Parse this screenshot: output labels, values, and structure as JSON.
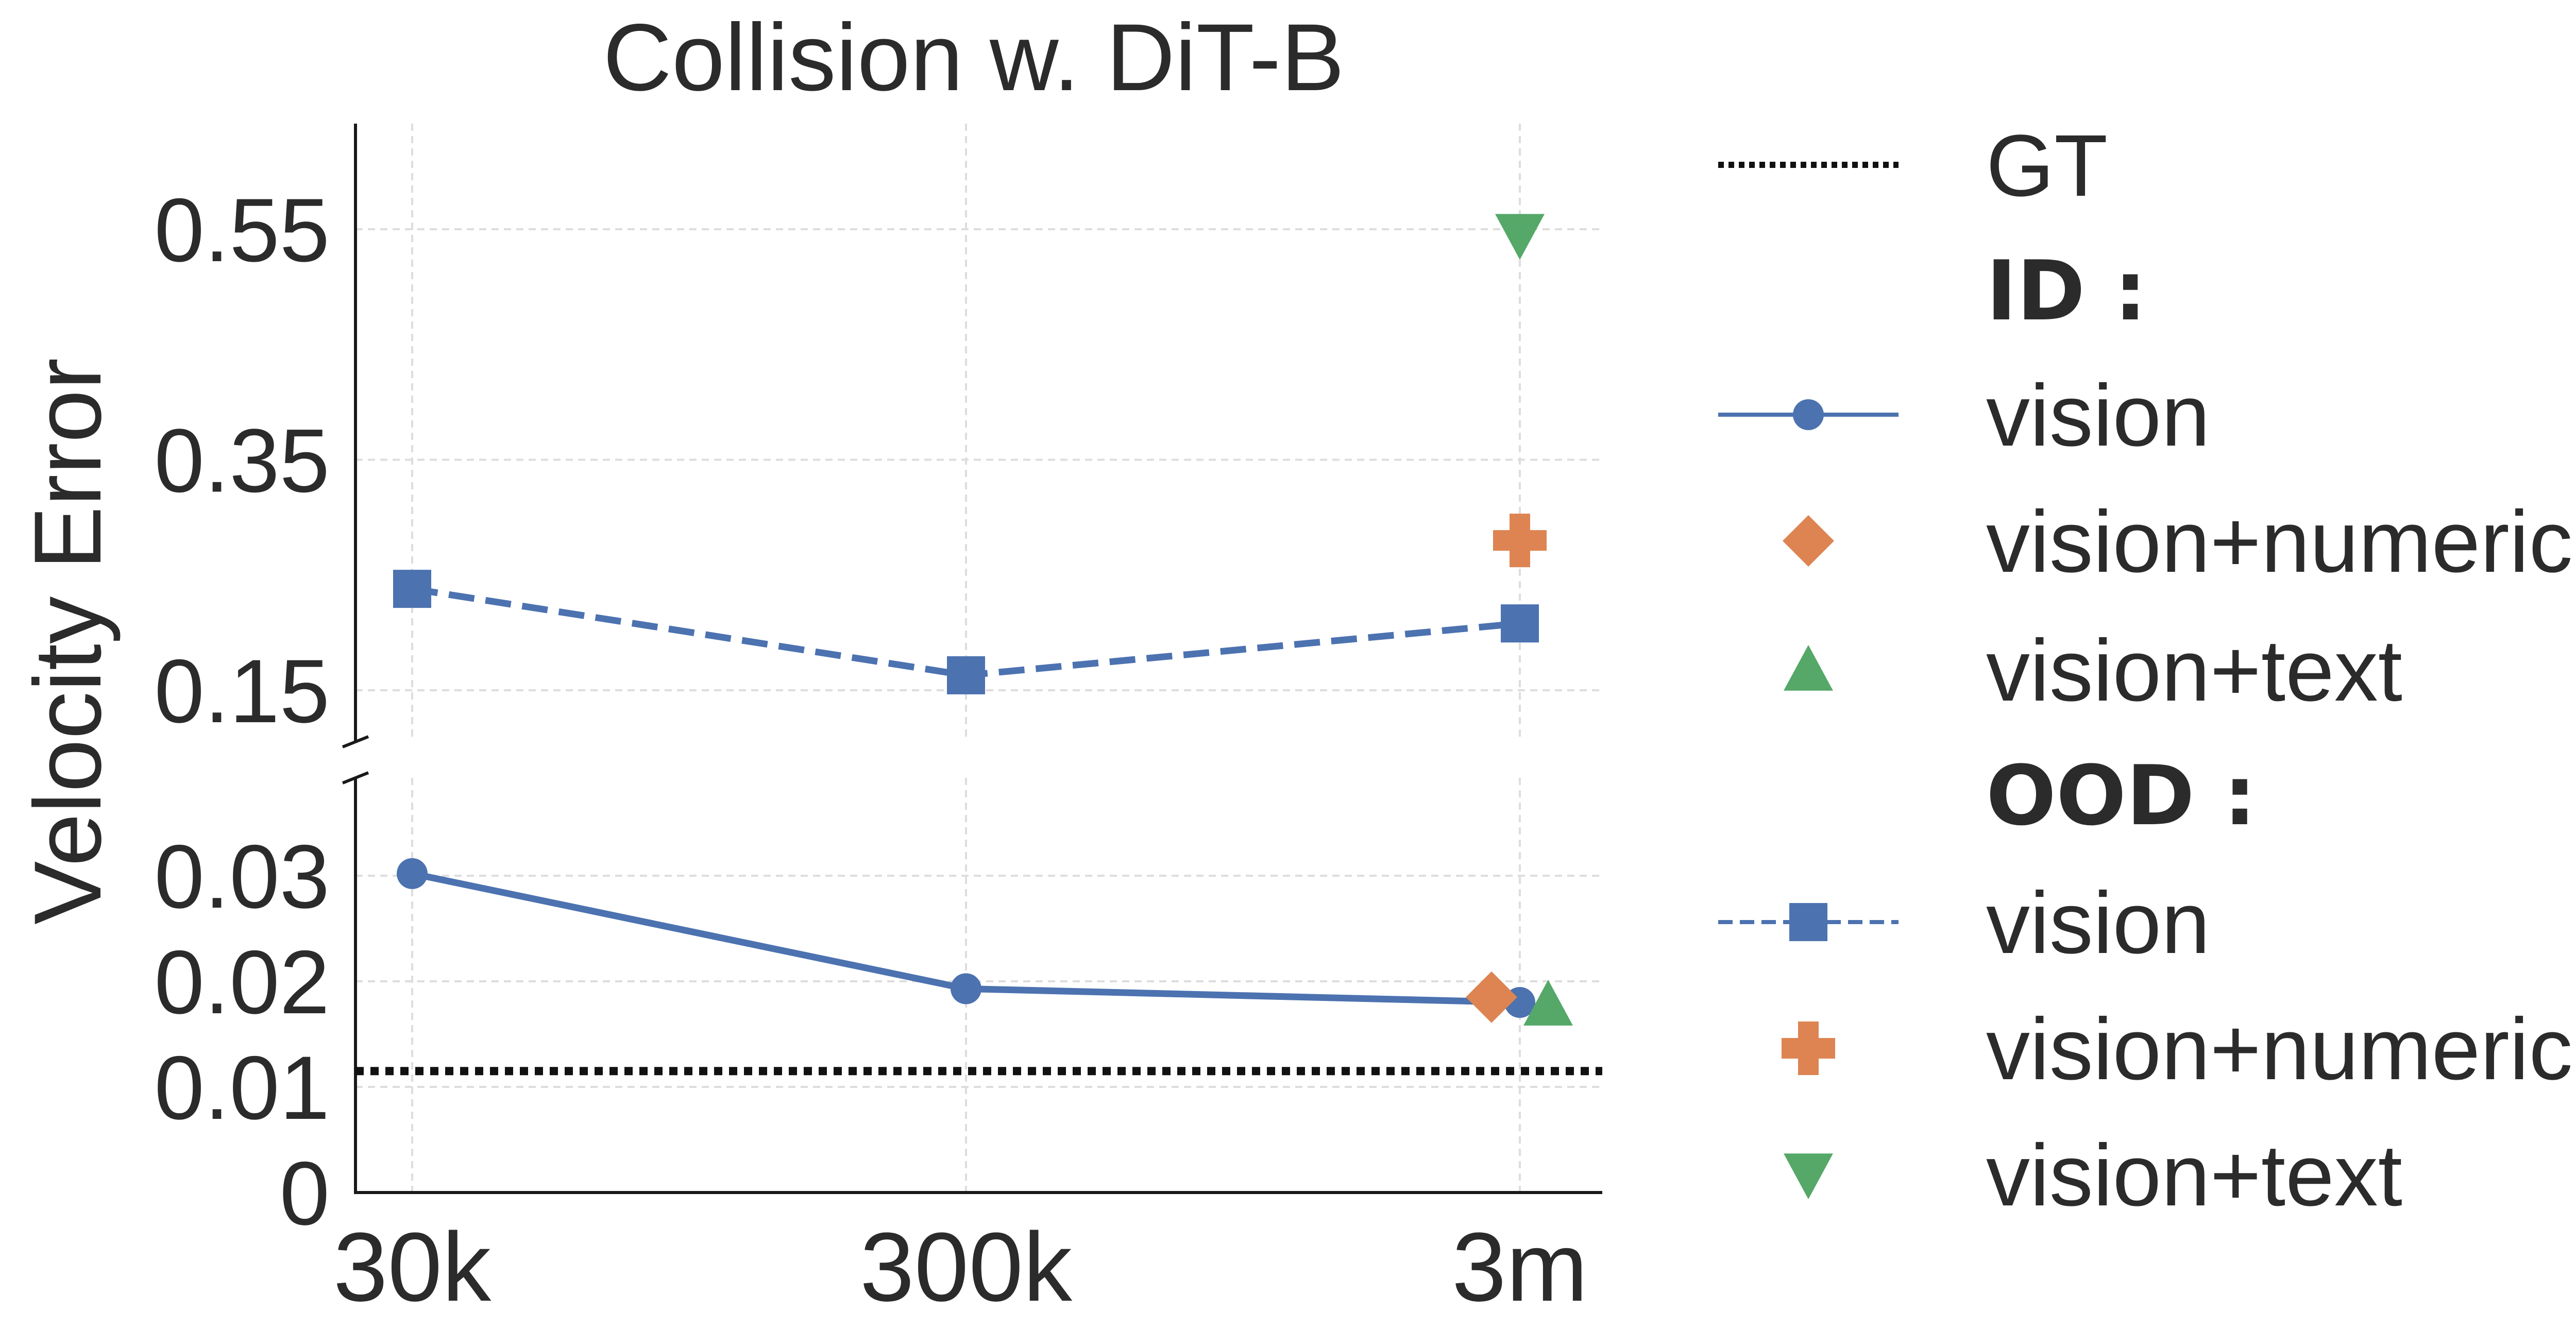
{
  "chart_data": {
    "type": "line",
    "title": "Collision w. DiT-B",
    "xlabel": "",
    "ylabel": "Velocity Error",
    "categories": [
      "30k",
      "300k",
      "3m"
    ],
    "x_scale": "categorical (log-spaced training data size)",
    "broken_y_axis": true,
    "upper_panel": {
      "ylim": [
        0.12,
        0.64
      ],
      "yticks": [
        0.15,
        0.35,
        0.55
      ],
      "ytick_labels": [
        "0.15",
        "0.35",
        "0.55"
      ]
    },
    "lower_panel": {
      "ylim": [
        0,
        0.04
      ],
      "yticks": [
        0,
        0.01,
        0.02,
        0.03
      ],
      "ytick_labels": [
        "0",
        "0.01",
        "0.02",
        "0.03"
      ]
    },
    "grid": true,
    "legend_position": "outside-right",
    "gt_value": 0.0115,
    "series": [
      {
        "key": "id_vision",
        "group": "ID",
        "name": "vision",
        "style": "solid",
        "marker": "circle",
        "color": "#4c72b0",
        "x": [
          "30k",
          "300k",
          "3m"
        ],
        "values": [
          0.0302,
          0.0193,
          0.018
        ],
        "panel": "lower"
      },
      {
        "key": "id_numeric",
        "group": "ID",
        "name": "vision+numeric",
        "style": "none",
        "marker": "diamond",
        "color": "#dd8452",
        "x": [
          "3m"
        ],
        "values": [
          0.0185
        ],
        "panel": "lower"
      },
      {
        "key": "id_text",
        "group": "ID",
        "name": "vision+text",
        "style": "none",
        "marker": "triangle-up",
        "color": "#55a868",
        "x": [
          "3m"
        ],
        "values": [
          0.0178
        ],
        "panel": "lower"
      },
      {
        "key": "ood_vision",
        "group": "OOD",
        "name": "vision",
        "style": "dashed",
        "marker": "square",
        "color": "#4c72b0",
        "x": [
          "30k",
          "300k",
          "3m"
        ],
        "values": [
          0.238,
          0.163,
          0.208
        ],
        "panel": "upper"
      },
      {
        "key": "ood_numeric",
        "group": "OOD",
        "name": "vision+numeric",
        "style": "none",
        "marker": "plus",
        "color": "#dd8452",
        "x": [
          "3m"
        ],
        "values": [
          0.28
        ],
        "panel": "upper"
      },
      {
        "key": "ood_text",
        "group": "OOD",
        "name": "vision+text",
        "style": "none",
        "marker": "triangle-down",
        "color": "#55a868",
        "x": [
          "3m"
        ],
        "values": [
          0.545
        ],
        "panel": "upper"
      }
    ],
    "legend": {
      "gt_label": "GT",
      "id_heading": "ID :",
      "ood_heading": "OOD :",
      "entries": [
        "GT",
        "ID :",
        "vision",
        "vision+numeric",
        "vision+text",
        "OOD :",
        "vision",
        "vision+numeric",
        "vision+text"
      ]
    }
  }
}
